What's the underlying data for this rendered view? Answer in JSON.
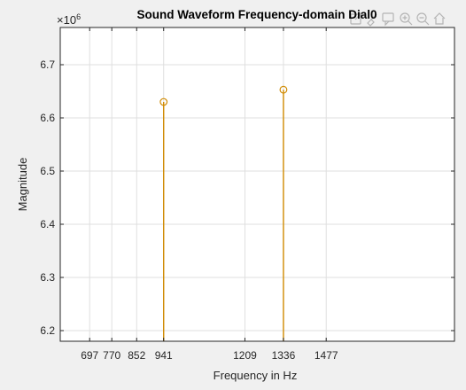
{
  "chart_data": {
    "type": "stem",
    "title": "Sound Waveform  Frequency-domain Dial0",
    "xlabel": "Frequency in Hz",
    "ylabel": "Magnitude",
    "y_exponent_label": "×10",
    "y_exponent_power": "6",
    "xlim": [
      600,
      1900
    ],
    "ylim": [
      6.18,
      6.77
    ],
    "x_ticks": [
      697,
      770,
      852,
      941,
      1209,
      1336,
      1477
    ],
    "x_tick_labels": [
      "697",
      "770",
      "852",
      "941",
      "1209",
      "1336",
      "1477"
    ],
    "y_ticks": [
      6.2,
      6.3,
      6.4,
      6.5,
      6.6,
      6.7
    ],
    "y_tick_labels": [
      "6.2",
      "6.3",
      "6.4",
      "6.5",
      "6.6",
      "6.7"
    ],
    "series": [
      {
        "x": [
          941,
          1336
        ],
        "values": [
          6.63,
          6.653
        ]
      }
    ],
    "grid": true,
    "stem_color": "#d08a00",
    "background": "#ffffff"
  },
  "toolbar": {
    "icons": [
      "export-icon",
      "brush-icon",
      "data-tip-icon",
      "zoom-in-icon",
      "zoom-out-icon",
      "home-icon"
    ]
  }
}
